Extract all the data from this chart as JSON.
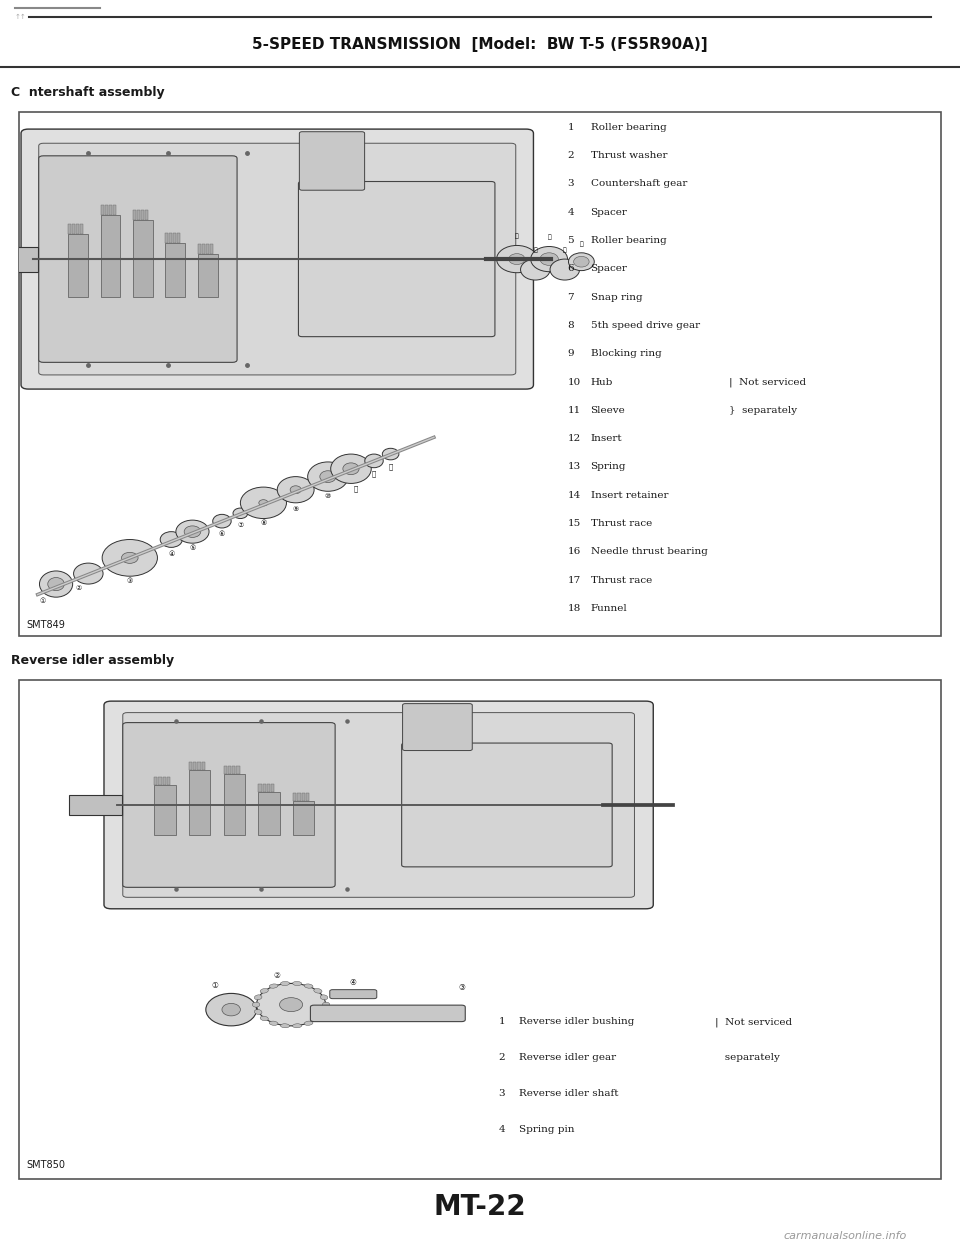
{
  "page_title": "5-SPEED TRANSMISSION  [Model:  BW T-5 (FS5R90A)]",
  "page_number": "MT-22",
  "watermark": "carmanualsonline.info",
  "section1_label": "C  ntershaft assembly",
  "section1_stamp": "SMT849",
  "section2_label": "Reverse idler assembly",
  "section2_stamp": "SMT850",
  "section1_parts": [
    [
      "1",
      "Roller bearing",
      ""
    ],
    [
      "2",
      "Thrust washer",
      ""
    ],
    [
      "3",
      "Countershaft gear",
      ""
    ],
    [
      "4",
      "Spacer",
      ""
    ],
    [
      "5",
      "Roller bearing",
      ""
    ],
    [
      "6",
      "Spacer",
      ""
    ],
    [
      "7",
      "Snap ring",
      ""
    ],
    [
      "8",
      "5th speed drive gear",
      ""
    ],
    [
      "9",
      "Blocking ring",
      ""
    ],
    [
      "10",
      "Hub",
      "Not serviced"
    ],
    [
      "11",
      "Sleeve",
      "separately"
    ],
    [
      "12",
      "Insert",
      ""
    ],
    [
      "13",
      "Spring",
      ""
    ],
    [
      "14",
      "Insert retainer",
      ""
    ],
    [
      "15",
      "Thrust race",
      ""
    ],
    [
      "16",
      "Needle thrust bearing",
      ""
    ],
    [
      "17",
      "Thrust race",
      ""
    ],
    [
      "18",
      "Funnel",
      ""
    ]
  ],
  "section2_parts": [
    [
      "1",
      "Reverse idler bushing",
      "Not serviced"
    ],
    [
      "2",
      "Reverse idler gear",
      "separately"
    ],
    [
      "3",
      "Reverse idler shaft",
      ""
    ],
    [
      "4",
      "Spring pin",
      ""
    ]
  ],
  "bg_color": "#ffffff",
  "text_color": "#1a1a1a",
  "box_edge_color": "#555555",
  "fig_width": 9.6,
  "fig_height": 12.48
}
